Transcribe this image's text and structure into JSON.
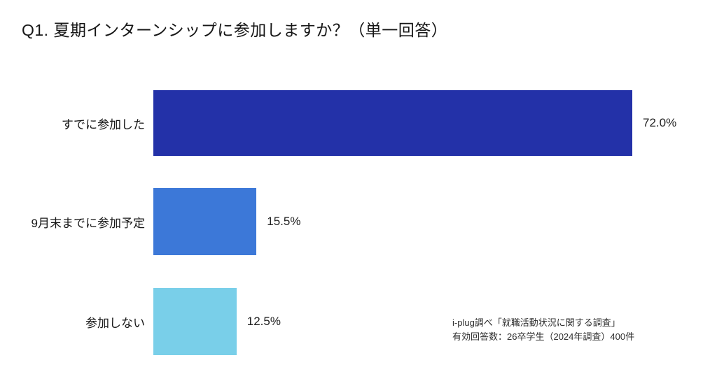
{
  "page": {
    "background": "#ffffff"
  },
  "header": {
    "title": "Q1. 夏期インターンシップに参加しますか？（単一回答）"
  },
  "chart_data": {
    "type": "bar",
    "orientation": "horizontal",
    "title": "Q1. 夏期インターンシップに参加しますか？（単一回答）",
    "categories": [
      "すでに参加した",
      "9月末までに参加予定",
      "参加しない"
    ],
    "values": [
      72.0,
      15.5,
      12.5
    ],
    "value_labels": [
      "72.0%",
      "15.5%",
      "12.5%"
    ],
    "unit": "%",
    "xlim": [
      0,
      100
    ],
    "grid": false,
    "legend": false,
    "bar_colors": [
      "#2331a8",
      "#3c78d8",
      "#79cfe9"
    ],
    "background_color": "#ffffff"
  },
  "source_note": {
    "line1": "i-plug調べ「就職活動状況に関する調査」",
    "line2": "有効回答数：26卒学生（2024年調査）400件"
  }
}
